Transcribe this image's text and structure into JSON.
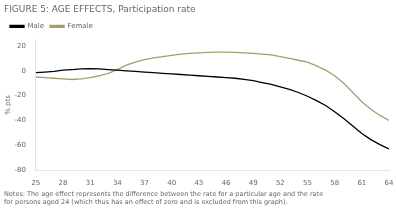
{
  "chart_data": {
    "type": "line",
    "title": "FIGURE 5: AGE EFFECTS, Participation rate",
    "ylabel": "% pts",
    "annotation": "Notes: The age effect represents the difference between the rate for a particular age and the rate\nfor persons aged 24 (which thus has an effect of zero and is excluded from this graph).",
    "x": [
      25,
      26,
      27,
      28,
      29,
      30,
      31,
      32,
      33,
      34,
      35,
      36,
      37,
      38,
      39,
      40,
      41,
      42,
      43,
      44,
      45,
      46,
      47,
      48,
      49,
      50,
      51,
      52,
      53,
      54,
      55,
      56,
      57,
      58,
      59,
      60,
      61,
      62,
      63,
      64
    ],
    "series": [
      {
        "name": "Male",
        "color": "#000000",
        "values": [
          -1.5,
          -1.0,
          -0.5,
          0.5,
          1.0,
          1.5,
          1.8,
          1.5,
          1.0,
          0.5,
          0.0,
          -0.5,
          -1.0,
          -1.5,
          -2.0,
          -2.5,
          -3.0,
          -3.5,
          -4.0,
          -4.5,
          -5.0,
          -5.5,
          -6.0,
          -7.0,
          -8.0,
          -9.5,
          -11.0,
          -13.0,
          -15.0,
          -17.5,
          -20.5,
          -24.0,
          -28.0,
          -33.0,
          -38.5,
          -44.5,
          -50.5,
          -55.5,
          -59.5,
          -63.0
        ]
      },
      {
        "name": "Female",
        "color": "#a89c6e",
        "values": [
          -5.0,
          -5.5,
          -6.0,
          -6.5,
          -7.0,
          -6.5,
          -5.5,
          -4.0,
          -2.0,
          1.0,
          4.5,
          7.0,
          9.0,
          10.5,
          11.5,
          12.5,
          13.5,
          14.0,
          14.5,
          14.8,
          15.0,
          15.0,
          14.8,
          14.5,
          14.0,
          13.5,
          12.8,
          11.5,
          10.0,
          8.5,
          7.0,
          4.0,
          0.5,
          -4.0,
          -10.0,
          -17.5,
          -25.0,
          -31.0,
          -36.0,
          -40.0
        ]
      }
    ],
    "xlim": [
      25,
      64
    ],
    "xticks": [
      25,
      28,
      31,
      34,
      37,
      40,
      43,
      46,
      49,
      52,
      55,
      58,
      61,
      64
    ],
    "ylim": [
      -80,
      25
    ],
    "yticks": [
      -80,
      -60,
      -40,
      -20,
      0,
      20
    ],
    "legend": "upper left",
    "grid": false
  }
}
